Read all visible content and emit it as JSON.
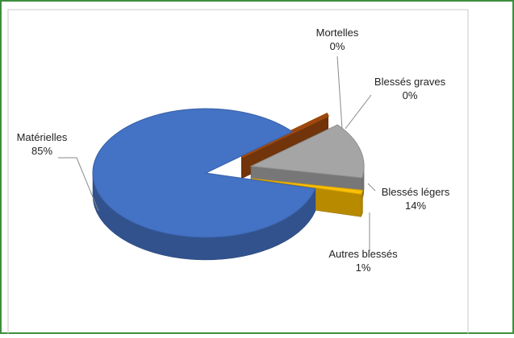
{
  "chart_data": {
    "type": "pie",
    "categories": [
      "Mortelles",
      "Blessés graves",
      "Blessés légers",
      "Autres blessés",
      "Matérielles"
    ],
    "values": [
      0,
      0,
      14,
      1,
      85
    ],
    "value_labels": [
      "0%",
      "0%",
      "14%",
      "1%",
      "85%"
    ],
    "colors": [
      "#c55a11",
      "#9e480e",
      "#a5a5a5",
      "#ffc000",
      "#4472c4"
    ]
  }
}
